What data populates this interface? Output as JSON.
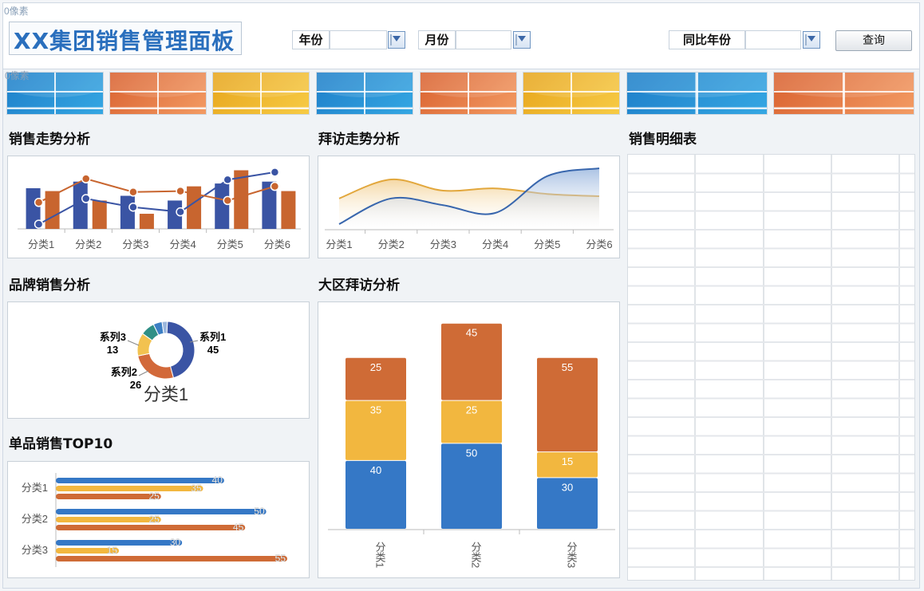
{
  "header": {
    "title": "XX集团销售管理面板",
    "top_marker": "0像素",
    "tile_marker": "0像素",
    "filters": {
      "year_label": "年份",
      "year_value": "",
      "month_label": "月份",
      "month_value": "",
      "yoy_label": "同比年份",
      "yoy_value": ""
    },
    "query_button": "查询"
  },
  "kpi_tiles": [
    "blue",
    "orange",
    "yellow",
    "blue",
    "orange",
    "yellow",
    "blue",
    "orange"
  ],
  "sections": {
    "sales_trend": "销售走势分析",
    "visit_trend": "拜访走势分析",
    "sales_detail": "销售明细表",
    "brand_sales": "品牌销售分析",
    "region_visit": "大区拜访分析",
    "top10": "单品销售TOP10"
  },
  "colors": {
    "blue": "#3a54a4",
    "orange": "#c8652f",
    "yellow": "#f0b738",
    "teal": "#2b8a8a",
    "bar_blue": "#2f6ebd"
  },
  "chart_data": [
    {
      "id": "sales-trend",
      "type": "bar",
      "categories": [
        "分类1",
        "分类2",
        "分类3",
        "分类4",
        "分类5",
        "分类6"
      ],
      "series": [
        {
          "type": "bar",
          "values": [
            4.3,
            5.0,
            3.5,
            3.0,
            4.8,
            5.0
          ]
        },
        {
          "type": "bar",
          "values": [
            4.0,
            3.0,
            1.6,
            4.5,
            6.2,
            4.0
          ]
        },
        {
          "type": "line",
          "values": [
            0.5,
            3.2,
            2.3,
            1.8,
            5.2,
            6.0
          ]
        },
        {
          "type": "line",
          "values": [
            2.8,
            5.3,
            3.9,
            4.0,
            3.0,
            4.5
          ]
        }
      ],
      "ylim": [
        0,
        7
      ],
      "title": ""
    },
    {
      "id": "visit-trend",
      "type": "area",
      "categories": [
        "分类1",
        "分类2",
        "分类3",
        "分类4",
        "分类5",
        "分类6"
      ],
      "series": [
        {
          "values": [
            2.8,
            4.5,
            3.5,
            3.7,
            3.2,
            3.0
          ]
        },
        {
          "values": [
            0.5,
            2.8,
            2.2,
            1.5,
            4.8,
            5.5
          ]
        }
      ],
      "ylim": [
        0,
        6
      ]
    },
    {
      "id": "brand-sales",
      "type": "pie",
      "categories": [
        "分类1"
      ],
      "title": "分类1",
      "slices": [
        {
          "label": "系列1",
          "value": 45
        },
        {
          "label": "系列2",
          "value": 26
        },
        {
          "label": "系列3",
          "value": 13
        },
        {
          "label": "",
          "value": 8
        },
        {
          "label": "",
          "value": 5
        },
        {
          "label": "",
          "value": 3
        }
      ]
    },
    {
      "id": "region-visit",
      "type": "bar",
      "stacked": true,
      "categories": [
        "分类1",
        "分类2",
        "分类3"
      ],
      "series": [
        {
          "values": [
            40,
            50,
            30
          ]
        },
        {
          "values": [
            35,
            25,
            15
          ]
        },
        {
          "values": [
            25,
            45,
            55
          ]
        }
      ],
      "ylim": [
        0,
        125
      ]
    },
    {
      "id": "top10",
      "type": "bar",
      "orientation": "horizontal",
      "categories": [
        "分类1",
        "分类2",
        "分类3"
      ],
      "series": [
        {
          "values": [
            40,
            50,
            30
          ]
        },
        {
          "values": [
            35,
            25,
            15
          ]
        },
        {
          "values": [
            25,
            45,
            55
          ]
        }
      ],
      "xlim": [
        0,
        55
      ]
    }
  ],
  "table": {
    "columns": 5,
    "rows": 22
  }
}
